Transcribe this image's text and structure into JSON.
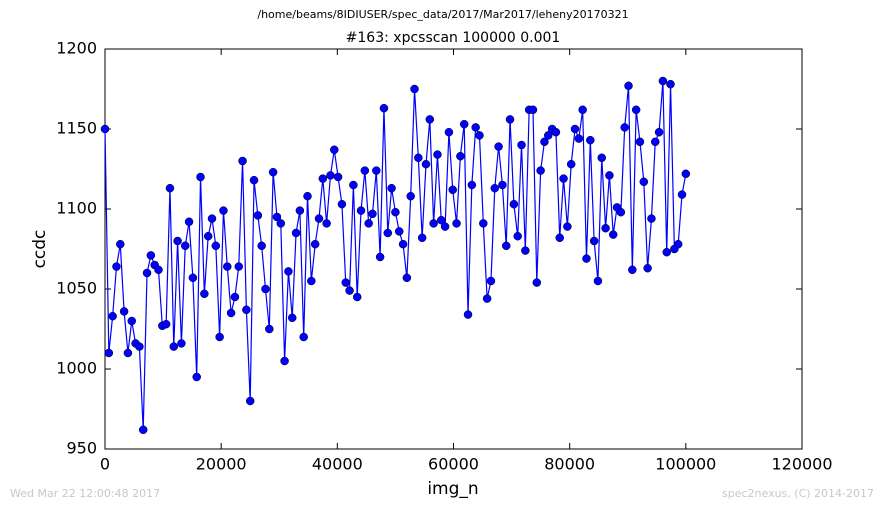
{
  "chart_data": {
    "type": "line",
    "header": "/home/beams/8IDIUSER/spec_data/2017/Mar2017/leheny20170321",
    "title": "#163: xpcsscan 100000 0.001",
    "x_label": "img_n",
    "y_label": "ccdc",
    "footer_left": "Wed Mar 22 12:00:48 2017",
    "footer_right": "spec2nexus, (C) 2014-2017",
    "xlim": [
      0,
      120000
    ],
    "xticks": [
      0,
      20000,
      40000,
      60000,
      80000,
      100000,
      120000
    ],
    "ylim": [
      950,
      1200
    ],
    "yticks": [
      950,
      1000,
      1050,
      1100,
      1150,
      1200
    ],
    "x": [
      0,
      658,
      1316,
      1974,
      2632,
      3289,
      3947,
      4605,
      5263,
      5921,
      6579,
      7237,
      7895,
      8553,
      9211,
      9868,
      10526,
      11184,
      11842,
      12500,
      13158,
      13816,
      14474,
      15132,
      15789,
      16447,
      17105,
      17763,
      18421,
      19079,
      19737,
      20395,
      21053,
      21711,
      22368,
      23026,
      23684,
      24342,
      25000,
      25658,
      26316,
      26974,
      27632,
      28289,
      28947,
      29605,
      30263,
      30921,
      31579,
      32237,
      32895,
      33553,
      34211,
      34868,
      35526,
      36184,
      36842,
      37500,
      38158,
      38816,
      39474,
      40132,
      40789,
      41447,
      42105,
      42763,
      43421,
      44079,
      44737,
      45395,
      46053,
      46711,
      47368,
      48026,
      48684,
      49342,
      50000,
      50658,
      51316,
      51974,
      52632,
      53289,
      53947,
      54605,
      55263,
      55921,
      56579,
      57237,
      57895,
      58553,
      59211,
      59868,
      60526,
      61184,
      61842,
      62500,
      63158,
      63816,
      64474,
      65132,
      65789,
      66447,
      67105,
      67763,
      68421,
      69079,
      69737,
      70395,
      71053,
      71711,
      72368,
      73026,
      73684,
      74342,
      75000,
      75658,
      76316,
      76974,
      77632,
      78289,
      78947,
      79605,
      80263,
      80921,
      81579,
      82237,
      82895,
      83553,
      84211,
      84868,
      85526,
      86184,
      86842,
      87500,
      88158,
      88816,
      89474,
      90132,
      90789,
      91447,
      92105,
      92763,
      93421,
      94079,
      94737,
      95395,
      96053,
      96711,
      97368,
      98026,
      98684,
      99342,
      100000
    ],
    "series": [
      {
        "color": "#0000ff",
        "values": [
          1150,
          1010,
          1033,
          1064,
          1078,
          1036,
          1010,
          1030,
          1016,
          1014,
          962,
          1060,
          1071,
          1065,
          1062,
          1027,
          1028,
          1113,
          1014,
          1080,
          1016,
          1077,
          1092,
          1057,
          995,
          1120,
          1047,
          1083,
          1094,
          1077,
          1020,
          1099,
          1064,
          1035,
          1045,
          1064,
          1130,
          1037,
          980,
          1118,
          1096,
          1077,
          1050,
          1025,
          1123,
          1095,
          1091,
          1005,
          1061,
          1032,
          1085,
          1099,
          1020,
          1108,
          1055,
          1078,
          1094,
          1119,
          1091,
          1121,
          1137,
          1120,
          1103,
          1054,
          1049,
          1115,
          1045,
          1099,
          1124,
          1091,
          1097,
          1124,
          1070,
          1163,
          1085,
          1113,
          1098,
          1086,
          1078,
          1057,
          1108,
          1175,
          1132,
          1082,
          1128,
          1156,
          1091,
          1134,
          1093,
          1089,
          1148,
          1112,
          1091,
          1133,
          1153,
          1034,
          1115,
          1151,
          1146,
          1091,
          1044,
          1055,
          1113,
          1139,
          1115,
          1077,
          1156,
          1103,
          1083,
          1140,
          1074,
          1162,
          1162,
          1054,
          1124,
          1142,
          1146,
          1150,
          1148,
          1082,
          1119,
          1089,
          1128,
          1150,
          1144,
          1162,
          1069,
          1143,
          1080,
          1055,
          1132,
          1088,
          1121,
          1084,
          1101,
          1098,
          1151,
          1177,
          1062,
          1162,
          1142,
          1117,
          1063,
          1094,
          1142,
          1148,
          1180,
          1073,
          1178,
          1075,
          1078,
          1109,
          1122
        ]
      }
    ]
  }
}
